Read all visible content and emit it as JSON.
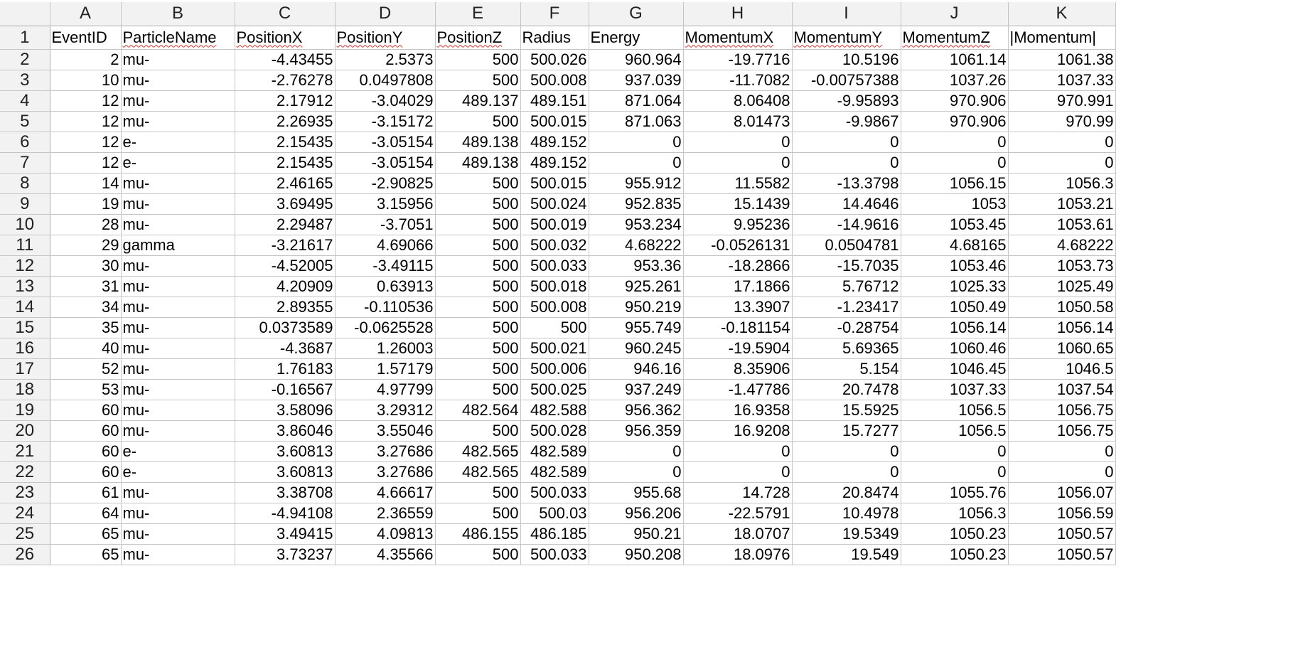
{
  "columns": [
    "A",
    "B",
    "C",
    "D",
    "E",
    "F",
    "G",
    "H",
    "I",
    "J",
    "K"
  ],
  "rows": [
    {
      "n": "1",
      "cells": [
        "EventID",
        "ParticleName",
        "PositionX",
        "PositionY",
        "PositionZ",
        "Radius",
        "Energy",
        "MomentumX",
        "MomentumY",
        "MomentumZ",
        "|Momentum|"
      ]
    },
    {
      "n": "2",
      "cells": [
        "2",
        "mu-",
        "-4.43455",
        "2.5373",
        "500",
        "500.026",
        "960.964",
        "-19.7716",
        "10.5196",
        "1061.14",
        "1061.38"
      ]
    },
    {
      "n": "3",
      "cells": [
        "10",
        "mu-",
        "-2.76278",
        "0.0497808",
        "500",
        "500.008",
        "937.039",
        "-11.7082",
        "-0.00757388",
        "1037.26",
        "1037.33"
      ]
    },
    {
      "n": "4",
      "cells": [
        "12",
        "mu-",
        "2.17912",
        "-3.04029",
        "489.137",
        "489.151",
        "871.064",
        "8.06408",
        "-9.95893",
        "970.906",
        "970.991"
      ]
    },
    {
      "n": "5",
      "cells": [
        "12",
        "mu-",
        "2.26935",
        "-3.15172",
        "500",
        "500.015",
        "871.063",
        "8.01473",
        "-9.9867",
        "970.906",
        "970.99"
      ]
    },
    {
      "n": "6",
      "cells": [
        "12",
        "e-",
        "2.15435",
        "-3.05154",
        "489.138",
        "489.152",
        "0",
        "0",
        "0",
        "0",
        "0"
      ]
    },
    {
      "n": "7",
      "cells": [
        "12",
        "e-",
        "2.15435",
        "-3.05154",
        "489.138",
        "489.152",
        "0",
        "0",
        "0",
        "0",
        "0"
      ]
    },
    {
      "n": "8",
      "cells": [
        "14",
        "mu-",
        "2.46165",
        "-2.90825",
        "500",
        "500.015",
        "955.912",
        "11.5582",
        "-13.3798",
        "1056.15",
        "1056.3"
      ]
    },
    {
      "n": "9",
      "cells": [
        "19",
        "mu-",
        "3.69495",
        "3.15956",
        "500",
        "500.024",
        "952.835",
        "15.1439",
        "14.4646",
        "1053",
        "1053.21"
      ]
    },
    {
      "n": "10",
      "cells": [
        "28",
        "mu-",
        "2.29487",
        "-3.7051",
        "500",
        "500.019",
        "953.234",
        "9.95236",
        "-14.9616",
        "1053.45",
        "1053.61"
      ]
    },
    {
      "n": "11",
      "cells": [
        "29",
        "gamma",
        "-3.21617",
        "4.69066",
        "500",
        "500.032",
        "4.68222",
        "-0.0526131",
        "0.0504781",
        "4.68165",
        "4.68222"
      ]
    },
    {
      "n": "12",
      "cells": [
        "30",
        "mu-",
        "-4.52005",
        "-3.49115",
        "500",
        "500.033",
        "953.36",
        "-18.2866",
        "-15.7035",
        "1053.46",
        "1053.73"
      ]
    },
    {
      "n": "13",
      "cells": [
        "31",
        "mu-",
        "4.20909",
        "0.63913",
        "500",
        "500.018",
        "925.261",
        "17.1866",
        "5.76712",
        "1025.33",
        "1025.49"
      ]
    },
    {
      "n": "14",
      "cells": [
        "34",
        "mu-",
        "2.89355",
        "-0.110536",
        "500",
        "500.008",
        "950.219",
        "13.3907",
        "-1.23417",
        "1050.49",
        "1050.58"
      ]
    },
    {
      "n": "15",
      "cells": [
        "35",
        "mu-",
        "0.0373589",
        "-0.0625528",
        "500",
        "500",
        "955.749",
        "-0.181154",
        "-0.28754",
        "1056.14",
        "1056.14"
      ]
    },
    {
      "n": "16",
      "cells": [
        "40",
        "mu-",
        "-4.3687",
        "1.26003",
        "500",
        "500.021",
        "960.245",
        "-19.5904",
        "5.69365",
        "1060.46",
        "1060.65"
      ]
    },
    {
      "n": "17",
      "cells": [
        "52",
        "mu-",
        "1.76183",
        "1.57179",
        "500",
        "500.006",
        "946.16",
        "8.35906",
        "5.154",
        "1046.45",
        "1046.5"
      ]
    },
    {
      "n": "18",
      "cells": [
        "53",
        "mu-",
        "-0.16567",
        "4.97799",
        "500",
        "500.025",
        "937.249",
        "-1.47786",
        "20.7478",
        "1037.33",
        "1037.54"
      ]
    },
    {
      "n": "19",
      "cells": [
        "60",
        "mu-",
        "3.58096",
        "3.29312",
        "482.564",
        "482.588",
        "956.362",
        "16.9358",
        "15.5925",
        "1056.5",
        "1056.75"
      ]
    },
    {
      "n": "20",
      "cells": [
        "60",
        "mu-",
        "3.86046",
        "3.55046",
        "500",
        "500.028",
        "956.359",
        "16.9208",
        "15.7277",
        "1056.5",
        "1056.75"
      ]
    },
    {
      "n": "21",
      "cells": [
        "60",
        "e-",
        "3.60813",
        "3.27686",
        "482.565",
        "482.589",
        "0",
        "0",
        "0",
        "0",
        "0"
      ]
    },
    {
      "n": "22",
      "cells": [
        "60",
        "e-",
        "3.60813",
        "3.27686",
        "482.565",
        "482.589",
        "0",
        "0",
        "0",
        "0",
        "0"
      ]
    },
    {
      "n": "23",
      "cells": [
        "61",
        "mu-",
        "3.38708",
        "4.66617",
        "500",
        "500.033",
        "955.68",
        "14.728",
        "20.8474",
        "1055.76",
        "1056.07"
      ]
    },
    {
      "n": "24",
      "cells": [
        "64",
        "mu-",
        "-4.94108",
        "2.36559",
        "500",
        "500.03",
        "956.206",
        "-22.5791",
        "10.4978",
        "1056.3",
        "1056.59"
      ]
    },
    {
      "n": "25",
      "cells": [
        "65",
        "mu-",
        "3.49415",
        "4.09813",
        "486.155",
        "486.185",
        "950.21",
        "18.0707",
        "19.5349",
        "1050.23",
        "1050.57"
      ]
    },
    {
      "n": "26",
      "cells": [
        "65",
        "mu-",
        "3.73237",
        "4.35566",
        "500",
        "500.033",
        "950.208",
        "18.0976",
        "19.549",
        "1050.23",
        "1050.57"
      ]
    }
  ],
  "colors": {
    "header_bg": "#f2f2f2",
    "gridline": "#c6c6c6",
    "spellcheck": "#e0312b"
  }
}
